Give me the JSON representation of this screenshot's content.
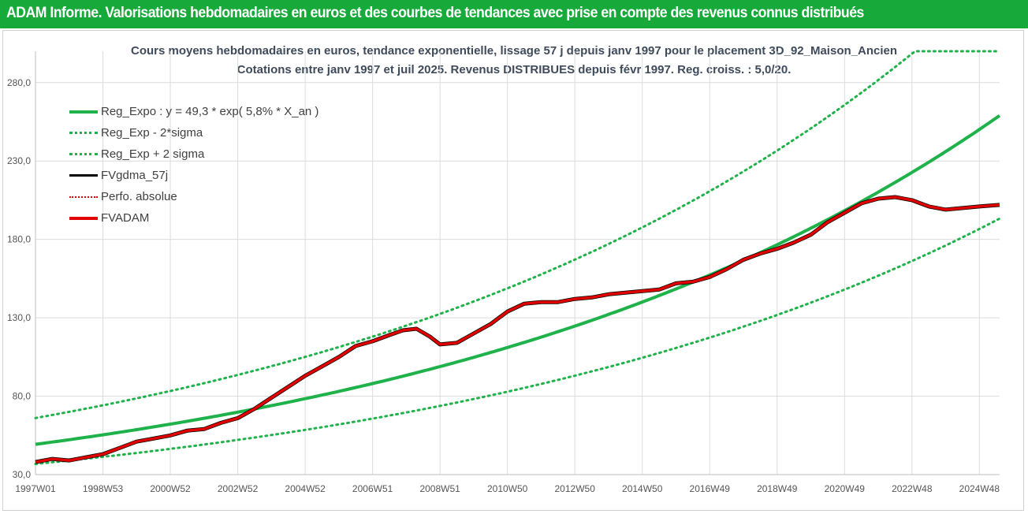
{
  "header": {
    "title": "ADAM Informe. Valorisations hebdomadaires en euros et des courbes de tendances avec prise en compte des revenus connus distribués",
    "background_color": "#17a93a"
  },
  "chart_data": {
    "type": "line",
    "title_line1": "Cours moyens hebdomadaires en euros, tendance exponentielle, lissage 57 j depuis janv 1997 pour le placement 3D_92_Maison_Ancien",
    "title_line2": "Cotations entre janv 1997 et juil 2025. Revenus DISTRIBUES depuis févr 1997. Reg. croiss. : 5,0/20.",
    "xlabel": "",
    "ylabel": "",
    "ylim": [
      30,
      300
    ],
    "xlim": [
      1997.0,
      2025.6
    ],
    "y_ticks": [
      "30,0",
      "80,0",
      "130,0",
      "180,0",
      "230,0",
      "280,0"
    ],
    "y_tick_values": [
      30,
      80,
      130,
      180,
      230,
      280
    ],
    "x_ticks": [
      "1997W01",
      "1998W53",
      "2000W52",
      "2002W52",
      "2004W52",
      "2006W51",
      "2008W51",
      "2010W50",
      "2012W50",
      "2014W50",
      "2016W49",
      "2018W49",
      "2020W49",
      "2022W48",
      "2024W48"
    ],
    "x_tick_values": [
      1997.0,
      1999.0,
      2001.0,
      2003.0,
      2005.0,
      2007.0,
      2009.0,
      2011.0,
      2013.0,
      2015.0,
      2017.0,
      2019.0,
      2021.0,
      2023.0,
      2025.0
    ],
    "grid": "horizontal and vertical",
    "legend_position": "top-left",
    "regression": {
      "a": 49.3,
      "growth_pct": 5.8,
      "sigma_factor": 1.34,
      "cap": 300
    },
    "series": [
      {
        "name": "Reg_Expo : y = 49,3 * exp( 5,8% *  X_an )",
        "style": "solid",
        "color": "#1fb24a"
      },
      {
        "name": "Reg_Exp - 2*sigma",
        "style": "dotted",
        "color": "#1fb24a"
      },
      {
        "name": "Reg_Exp + 2 sigma",
        "style": "dotted",
        "color": "#1fb24a"
      },
      {
        "name": "FVgdma_57j",
        "style": "solid",
        "color": "#000000"
      },
      {
        "name": "Perfo. absolue",
        "style": "dotted",
        "color": "#e00000"
      },
      {
        "name": "FVADAM",
        "style": "solid",
        "color": "#e00000",
        "x": [
          1997.0,
          1997.5,
          1998.0,
          1998.5,
          1999.0,
          1999.5,
          2000.0,
          2000.5,
          2001.0,
          2001.5,
          2002.0,
          2002.5,
          2003.0,
          2003.5,
          2004.0,
          2004.5,
          2005.0,
          2005.5,
          2006.0,
          2006.5,
          2007.0,
          2007.5,
          2007.9,
          2008.3,
          2008.7,
          2009.0,
          2009.5,
          2010.0,
          2010.5,
          2011.0,
          2011.5,
          2012.0,
          2012.5,
          2013.0,
          2013.5,
          2014.0,
          2014.5,
          2015.0,
          2015.5,
          2016.0,
          2016.5,
          2017.0,
          2017.5,
          2018.0,
          2018.5,
          2019.0,
          2019.5,
          2020.0,
          2020.5,
          2021.0,
          2021.5,
          2022.0,
          2022.5,
          2023.0,
          2023.5,
          2024.0,
          2024.5,
          2025.0,
          2025.6
        ],
        "values": [
          38,
          40,
          39,
          41,
          43,
          47,
          51,
          53,
          55,
          58,
          59,
          63,
          66,
          72,
          79,
          86,
          93,
          99,
          105,
          112,
          115,
          119,
          122,
          123,
          118,
          113,
          114,
          120,
          126,
          134,
          139,
          140,
          140,
          142,
          143,
          145,
          146,
          147,
          148,
          152,
          153,
          156,
          161,
          167,
          171,
          174,
          178,
          183,
          191,
          197,
          203,
          206,
          207,
          205,
          201,
          199,
          200,
          201,
          202
        ]
      }
    ]
  },
  "legend": {
    "items": [
      {
        "label": "Reg_Expo : y = 49,3 * exp( 5,8% *  X_an )"
      },
      {
        "label": "Reg_Exp - 2*sigma"
      },
      {
        "label": "Reg_Exp + 2 sigma"
      },
      {
        "label": "FVgdma_57j"
      },
      {
        "label": "Perfo. absolue"
      },
      {
        "label": "FVADAM"
      }
    ]
  }
}
